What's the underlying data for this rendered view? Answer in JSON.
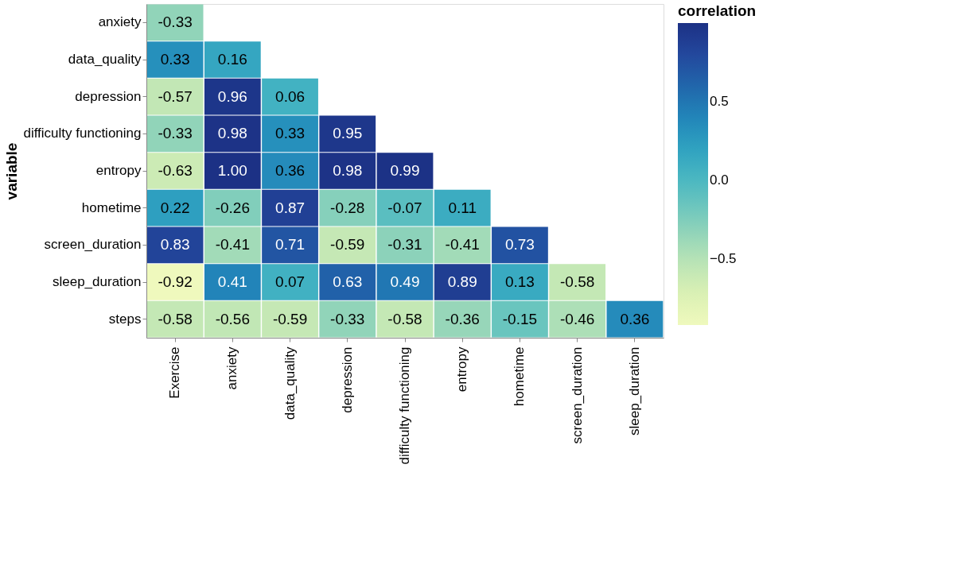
{
  "chart_data": {
    "type": "heatmap",
    "ylabel": "variable",
    "legend_title": "correlation",
    "categories": [
      "Exercise",
      "anxiety",
      "data_quality",
      "depression",
      "difficulty functioning",
      "entropy",
      "hometime",
      "screen_duration",
      "sleep_duration"
    ],
    "y_categories": [
      "anxiety",
      "data_quality",
      "depression",
      "difficulty functioning",
      "entropy",
      "hometime",
      "screen_duration",
      "sleep_duration",
      "steps"
    ],
    "cells": [
      [
        -0.33,
        null,
        null,
        null,
        null,
        null,
        null,
        null,
        null
      ],
      [
        0.33,
        0.16,
        null,
        null,
        null,
        null,
        null,
        null,
        null
      ],
      [
        -0.57,
        0.96,
        0.06,
        null,
        null,
        null,
        null,
        null,
        null
      ],
      [
        -0.33,
        0.98,
        0.33,
        0.95,
        null,
        null,
        null,
        null,
        null
      ],
      [
        -0.63,
        1.0,
        0.36,
        0.98,
        0.99,
        null,
        null,
        null,
        null
      ],
      [
        0.22,
        -0.26,
        0.87,
        -0.28,
        -0.07,
        0.11,
        null,
        null,
        null
      ],
      [
        0.83,
        -0.41,
        0.71,
        -0.59,
        -0.31,
        -0.41,
        0.73,
        null,
        null
      ],
      [
        -0.92,
        0.41,
        0.07,
        0.63,
        0.49,
        0.89,
        0.13,
        -0.58,
        null
      ],
      [
        -0.58,
        -0.56,
        -0.59,
        -0.33,
        -0.58,
        -0.36,
        -0.15,
        -0.46,
        0.36
      ]
    ],
    "cell_labels": [
      [
        "-0.33",
        null,
        null,
        null,
        null,
        null,
        null,
        null,
        null
      ],
      [
        "0.33",
        "0.16",
        null,
        null,
        null,
        null,
        null,
        null,
        null
      ],
      [
        "-0.57",
        "0.96",
        "0.06",
        null,
        null,
        null,
        null,
        null,
        null
      ],
      [
        "-0.33",
        "0.98",
        "0.33",
        "0.95",
        null,
        null,
        null,
        null,
        null
      ],
      [
        "-0.63",
        "1.00",
        "0.36",
        "0.98",
        "0.99",
        null,
        null,
        null,
        null
      ],
      [
        "0.22",
        "-0.26",
        "0.87",
        "-0.28",
        "-0.07",
        "0.11",
        null,
        null,
        null
      ],
      [
        "0.83",
        "-0.41",
        "0.71",
        "-0.59",
        "-0.31",
        "-0.41",
        "0.73",
        null,
        null
      ],
      [
        "-0.92",
        "0.41",
        "0.07",
        "0.63",
        "0.49",
        "0.89",
        "0.13",
        "-0.58",
        null
      ],
      [
        "-0.58",
        "-0.56",
        "-0.59",
        "-0.33",
        "-0.58",
        "-0.36",
        "-0.15",
        "-0.46",
        "0.36"
      ]
    ],
    "clim": [
      -0.92,
      1.0
    ],
    "cticks": [
      {
        "value": -0.5,
        "label": "−0.5"
      },
      {
        "value": 0,
        "label": "0.0"
      },
      0.5
    ],
    "grid": false
  }
}
